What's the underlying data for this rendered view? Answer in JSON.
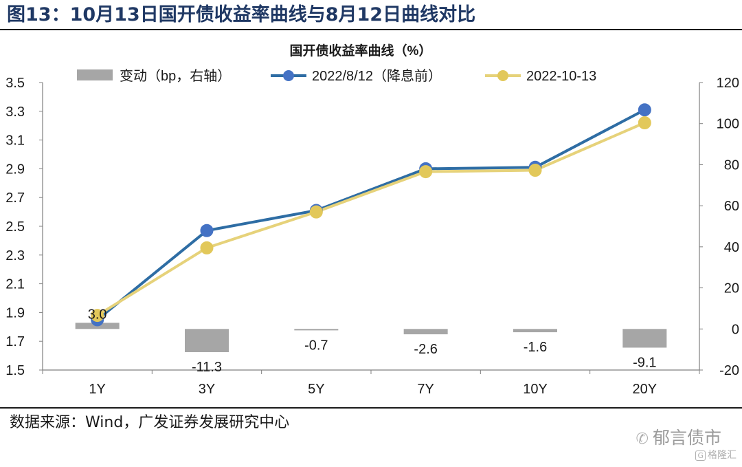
{
  "figure": {
    "title": "图13：10月13日国开债收益率曲线与8月12日曲线对比",
    "source": "数据来源：Wind，广发证券发展研究中心",
    "watermark": "郁言债市",
    "watermark_small": "格隆汇",
    "watermark_icon": "wechat-icon"
  },
  "chart_data": {
    "type": "bar+line",
    "title": "国开债收益率曲线（%）",
    "categories": [
      "1Y",
      "3Y",
      "5Y",
      "7Y",
      "10Y",
      "20Y"
    ],
    "left_axis": {
      "ylim": [
        1.5,
        3.5
      ],
      "ticks": [
        "1.5",
        "1.7",
        "1.9",
        "2.1",
        "2.3",
        "2.5",
        "2.7",
        "2.9",
        "3.1",
        "3.3",
        "3.5"
      ]
    },
    "right_axis": {
      "ylim": [
        -20,
        120
      ],
      "ticks": [
        "-20",
        "0",
        "20",
        "40",
        "60",
        "80",
        "100",
        "120"
      ]
    },
    "series": [
      {
        "name": "变动（bp，右轴）",
        "kind": "bar",
        "axis": "right",
        "color": "#a6a6a6",
        "values": [
          3.0,
          -11.3,
          -0.7,
          -2.6,
          -1.6,
          -9.1
        ],
        "labels": [
          "3.0",
          "-11.3",
          "-0.7",
          "-2.6",
          "-1.6",
          "-9.1"
        ]
      },
      {
        "name": "2022/8/12（降息前）",
        "kind": "line",
        "axis": "left",
        "color": "#2e6da4",
        "marker_color": "#4472c4",
        "values": [
          1.85,
          2.47,
          2.61,
          2.9,
          2.91,
          3.31
        ]
      },
      {
        "name": "2022-10-13",
        "kind": "line",
        "axis": "left",
        "color": "#e6d27a",
        "marker_color": "#e2c85a",
        "values": [
          1.88,
          2.35,
          2.6,
          2.88,
          2.89,
          3.22
        ]
      }
    ],
    "legend": "top",
    "grid": false
  }
}
